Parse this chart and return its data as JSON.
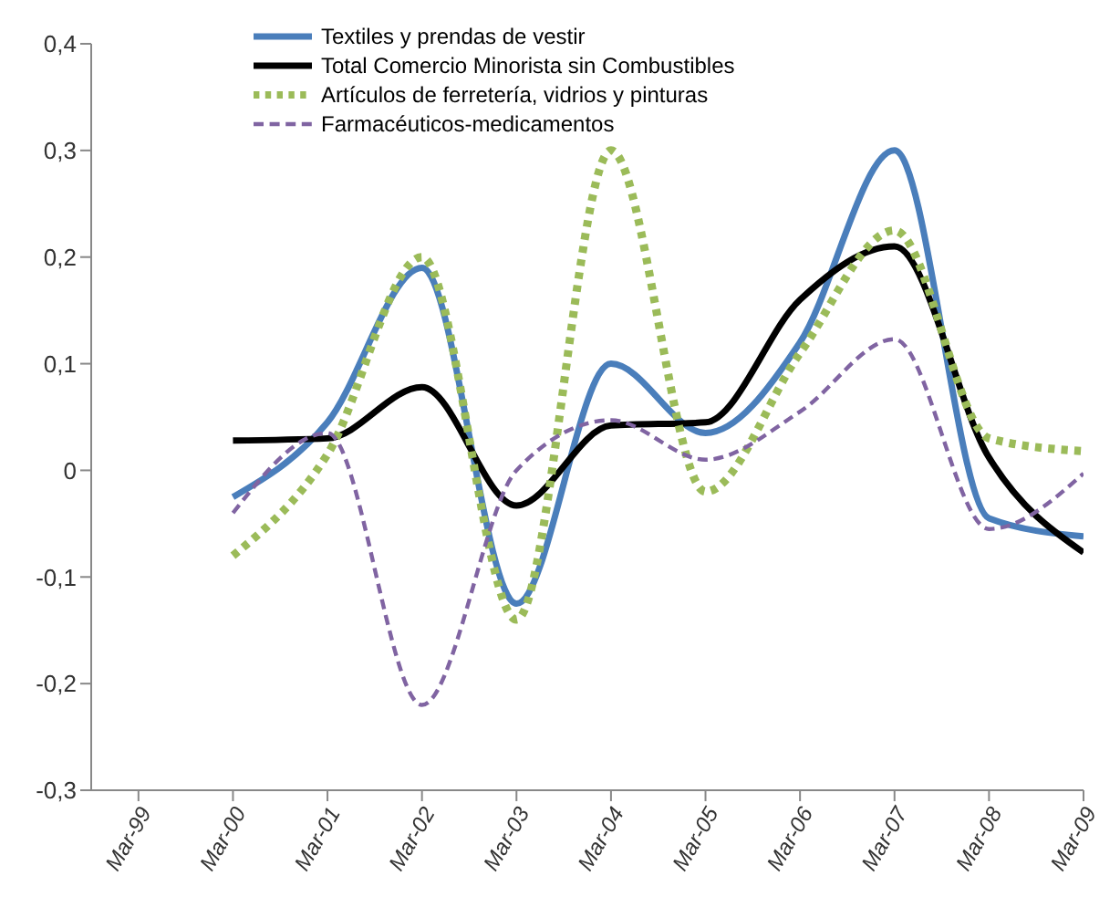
{
  "chart_data": {
    "type": "line",
    "categories": [
      "Mar-99",
      "Mar-00",
      "Mar-01",
      "Mar-02",
      "Mar-03",
      "Mar-04",
      "Mar-05",
      "Mar-06",
      "Mar-07",
      "Mar-08",
      "Mar-09"
    ],
    "series": [
      {
        "name": "Textiles y prendas de vestir",
        "color": "#4a7ebb",
        "line_style": "solid",
        "values": [
          null,
          -0.025,
          0.045,
          0.19,
          -0.125,
          0.1,
          0.035,
          0.12,
          0.3,
          -0.045,
          -0.062
        ]
      },
      {
        "name": "Total Comercio Minorista sin Combustibles",
        "color": "#000000",
        "line_style": "solid",
        "values": [
          null,
          0.028,
          0.03,
          0.078,
          -0.033,
          0.042,
          0.045,
          0.16,
          0.21,
          0.012,
          -0.077
        ]
      },
      {
        "name": "Artículos de ferretería, vidrios y pinturas",
        "color": "#9bbb59",
        "line_style": "dotted",
        "values": [
          null,
          -0.08,
          0.015,
          0.2,
          -0.14,
          0.3,
          -0.02,
          0.11,
          0.225,
          0.03,
          0.018
        ]
      },
      {
        "name": "Farmacéuticos-medicamentos",
        "color": "#8064a2",
        "line_style": "dashed",
        "values": [
          null,
          -0.04,
          0.035,
          -0.22,
          0.0,
          0.047,
          0.01,
          0.055,
          0.123,
          -0.055,
          -0.003
        ]
      }
    ],
    "ylim": [
      -0.3,
      0.4
    ],
    "yticks": [
      {
        "value": -0.3,
        "label": "-0,3"
      },
      {
        "value": -0.2,
        "label": "-0,2"
      },
      {
        "value": -0.1,
        "label": "-0,1"
      },
      0,
      {
        "value": 0.1,
        "label": "0,1"
      },
      {
        "value": 0.2,
        "label": "0,2"
      },
      {
        "value": 0.3,
        "label": "0,3"
      },
      {
        "value": 0.4,
        "label": "0,4"
      }
    ],
    "grid": false,
    "legend": "top",
    "marker": "none"
  }
}
